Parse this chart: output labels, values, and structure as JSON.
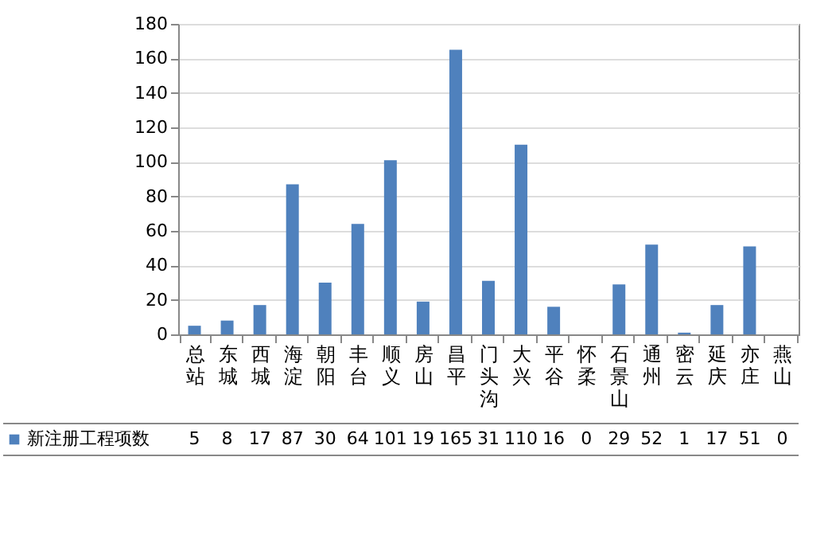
{
  "chart_data": {
    "type": "bar",
    "categories": [
      "总站",
      "东城",
      "西城",
      "海淀",
      "朝阳",
      "丰台",
      "顺义",
      "房山",
      "昌平",
      "门头沟",
      "大兴",
      "平谷",
      "怀柔",
      "石景山",
      "通州",
      "密云",
      "延庆",
      "亦庄",
      "燕山"
    ],
    "series": [
      {
        "name": "新注册工程项数",
        "color": "#4f81bd",
        "values": [
          5,
          8,
          17,
          87,
          30,
          64,
          101,
          19,
          165,
          31,
          110,
          16,
          0,
          29,
          52,
          1,
          17,
          51,
          0
        ]
      }
    ],
    "ylim": [
      0,
      180
    ],
    "yticks": [
      0,
      20,
      40,
      60,
      80,
      100,
      120,
      140,
      160,
      180
    ],
    "grid": "y",
    "legend": "bottom",
    "data_labels": true
  }
}
